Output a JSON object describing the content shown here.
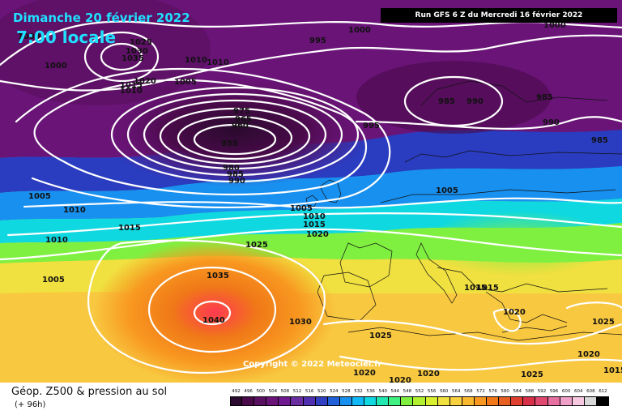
{
  "map": {
    "date_title": "Dimanche 20 février 2022",
    "time_title": "7:00 locale",
    "run_info": "Run GFS 6 Z du Mercredi 16 février 2022",
    "copyright": "Copyright © 2022 Meteociel.fr",
    "isobar_labels": [
      "1000",
      "1025",
      "1030",
      "1035",
      "1020",
      "1015",
      "1010",
      "1005",
      "1000",
      "995",
      "1000",
      "1000",
      "1010",
      "1010",
      "1005",
      "975",
      "965",
      "960",
      "955",
      "980",
      "985",
      "990",
      "995",
      "985",
      "990",
      "985",
      "990",
      "985",
      "1010",
      "1015",
      "1010",
      "1005",
      "1025",
      "1005",
      "1010",
      "1015",
      "1020",
      "1005",
      "1035",
      "1040",
      "1030",
      "1025",
      "1020",
      "1020",
      "1020",
      "1015",
      "1015",
      "1020",
      "1025",
      "1025",
      "1020",
      "1015"
    ],
    "colors": {
      "title_text": "#20e0ff",
      "isobar": "#ffffff",
      "low_core": "#3a0a40",
      "high_core": "#ff3a50"
    }
  },
  "legend": {
    "title": "Géop. Z500 & pression au sol",
    "subtitle": "(+ 96h)",
    "ticks": [
      "492",
      "496",
      "500",
      "504",
      "508",
      "512",
      "516",
      "520",
      "524",
      "528",
      "532",
      "536",
      "540",
      "544",
      "548",
      "552",
      "556",
      "560",
      "564",
      "568",
      "572",
      "576",
      "580",
      "584",
      "588",
      "592",
      "596",
      "600",
      "604",
      "608",
      "612"
    ],
    "colors": [
      "#2a0a2e",
      "#4a0a4a",
      "#5a1060",
      "#6a1478",
      "#701890",
      "#6a2ea0",
      "#5030b0",
      "#3040c0",
      "#2060d8",
      "#1890f0",
      "#10b8f8",
      "#10d8e0",
      "#20e8b0",
      "#40f080",
      "#80f040",
      "#b0f030",
      "#d8f030",
      "#f0e040",
      "#f8d040",
      "#f8b830",
      "#f89820",
      "#f07818",
      "#e86020",
      "#e04030",
      "#d83048",
      "#e04870",
      "#e870a0",
      "#f0a0c8",
      "#f8c8e0",
      "#d8d8d8",
      "#000000"
    ]
  }
}
